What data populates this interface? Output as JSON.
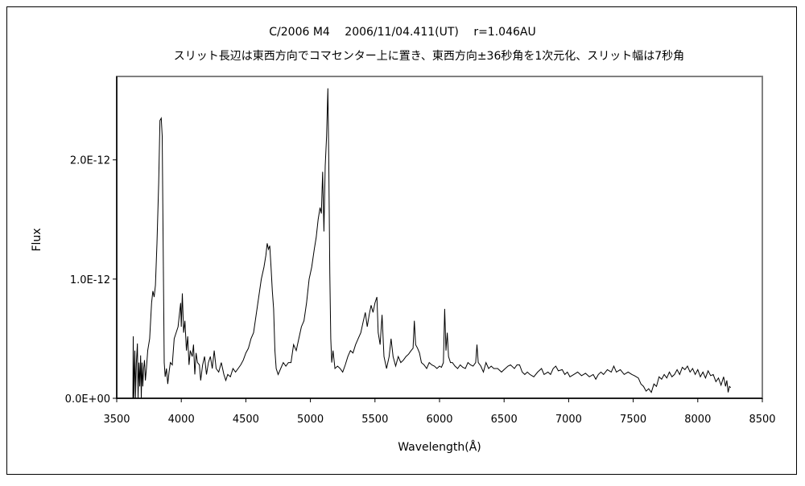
{
  "chart_data": {
    "type": "line",
    "title": "C/2006 M4　 2006/11/04.411(UT)　 r=1.046AU",
    "subtitle": "スリット長辺は東西方向でコマセンター上に置き、東西方向±36秒角を1次元化、スリット幅は7秒角",
    "xlabel": "Wavelength(Å)",
    "ylabel": "Flux",
    "xlim": [
      3500,
      8500
    ],
    "ylim": [
      0,
      2.7e-12
    ],
    "y_unit_scale": 1e-12,
    "grid": false,
    "legend": "none",
    "x_ticks": [
      "3500",
      "4000",
      "4500",
      "5000",
      "5500",
      "6000",
      "6500",
      "7000",
      "7500",
      "8000",
      "8500"
    ],
    "x_tick_values": [
      3500,
      4000,
      4500,
      5000,
      5500,
      6000,
      6500,
      7000,
      7500,
      8000,
      8500
    ],
    "y_ticks": [
      "0.0E+00",
      "1.0E-12",
      "2.0E-12"
    ],
    "y_tick_values": [
      0,
      1,
      2
    ],
    "line_color": "#000000",
    "series": [
      {
        "name": "Flux",
        "points": [
          [
            3625,
            0
          ],
          [
            3628,
            0.52
          ],
          [
            3632,
            0
          ],
          [
            3640,
            0.4
          ],
          [
            3645,
            0
          ],
          [
            3652,
            0.3
          ],
          [
            3660,
            0.46
          ],
          [
            3665,
            0
          ],
          [
            3672,
            0.3
          ],
          [
            3678,
            0.1
          ],
          [
            3685,
            0.36
          ],
          [
            3690,
            0
          ],
          [
            3696,
            0.3
          ],
          [
            3702,
            0.1
          ],
          [
            3708,
            0.25
          ],
          [
            3715,
            0.32
          ],
          [
            3722,
            0.15
          ],
          [
            3730,
            0.25
          ],
          [
            3740,
            0.4
          ],
          [
            3755,
            0.5
          ],
          [
            3770,
            0.8
          ],
          [
            3780,
            0.9
          ],
          [
            3790,
            0.85
          ],
          [
            3800,
            0.95
          ],
          [
            3812,
            1.3
          ],
          [
            3825,
            1.8
          ],
          [
            3835,
            2.33
          ],
          [
            3845,
            2.35
          ],
          [
            3852,
            2.2
          ],
          [
            3858,
            1.5
          ],
          [
            3863,
            0.9
          ],
          [
            3868,
            0.3
          ],
          [
            3875,
            0.18
          ],
          [
            3885,
            0.25
          ],
          [
            3895,
            0.12
          ],
          [
            3905,
            0.22
          ],
          [
            3915,
            0.3
          ],
          [
            3930,
            0.28
          ],
          [
            3945,
            0.5
          ],
          [
            3960,
            0.55
          ],
          [
            3975,
            0.6
          ],
          [
            3985,
            0.7
          ],
          [
            3995,
            0.8
          ],
          [
            4000,
            0.6
          ],
          [
            4008,
            0.88
          ],
          [
            4018,
            0.55
          ],
          [
            4028,
            0.65
          ],
          [
            4040,
            0.4
          ],
          [
            4050,
            0.52
          ],
          [
            4060,
            0.28
          ],
          [
            4070,
            0.4
          ],
          [
            4085,
            0.35
          ],
          [
            4095,
            0.45
          ],
          [
            4105,
            0.2
          ],
          [
            4115,
            0.38
          ],
          [
            4125,
            0.3
          ],
          [
            4140,
            0.28
          ],
          [
            4150,
            0.15
          ],
          [
            4165,
            0.28
          ],
          [
            4180,
            0.35
          ],
          [
            4195,
            0.2
          ],
          [
            4210,
            0.3
          ],
          [
            4225,
            0.35
          ],
          [
            4240,
            0.25
          ],
          [
            4255,
            0.4
          ],
          [
            4270,
            0.25
          ],
          [
            4290,
            0.22
          ],
          [
            4310,
            0.3
          ],
          [
            4330,
            0.2
          ],
          [
            4345,
            0.15
          ],
          [
            4360,
            0.2
          ],
          [
            4380,
            0.18
          ],
          [
            4400,
            0.25
          ],
          [
            4420,
            0.22
          ],
          [
            4440,
            0.25
          ],
          [
            4460,
            0.28
          ],
          [
            4480,
            0.32
          ],
          [
            4500,
            0.38
          ],
          [
            4520,
            0.42
          ],
          [
            4540,
            0.5
          ],
          [
            4560,
            0.55
          ],
          [
            4580,
            0.7
          ],
          [
            4600,
            0.85
          ],
          [
            4620,
            1.0
          ],
          [
            4640,
            1.1
          ],
          [
            4655,
            1.2
          ],
          [
            4665,
            1.3
          ],
          [
            4675,
            1.25
          ],
          [
            4685,
            1.28
          ],
          [
            4695,
            1.1
          ],
          [
            4705,
            0.9
          ],
          [
            4715,
            0.75
          ],
          [
            4725,
            0.4
          ],
          [
            4735,
            0.25
          ],
          [
            4750,
            0.2
          ],
          [
            4770,
            0.25
          ],
          [
            4790,
            0.3
          ],
          [
            4810,
            0.27
          ],
          [
            4830,
            0.3
          ],
          [
            4850,
            0.3
          ],
          [
            4870,
            0.45
          ],
          [
            4890,
            0.4
          ],
          [
            4910,
            0.5
          ],
          [
            4930,
            0.6
          ],
          [
            4950,
            0.65
          ],
          [
            4970,
            0.8
          ],
          [
            4990,
            1.0
          ],
          [
            5010,
            1.1
          ],
          [
            5030,
            1.25
          ],
          [
            5045,
            1.35
          ],
          [
            5060,
            1.5
          ],
          [
            5075,
            1.6
          ],
          [
            5085,
            1.55
          ],
          [
            5095,
            1.9
          ],
          [
            5105,
            1.4
          ],
          [
            5115,
            1.95
          ],
          [
            5125,
            2.2
          ],
          [
            5135,
            2.6
          ],
          [
            5142,
            2.0
          ],
          [
            5150,
            1.05
          ],
          [
            5158,
            0.5
          ],
          [
            5165,
            0.3
          ],
          [
            5175,
            0.4
          ],
          [
            5190,
            0.25
          ],
          [
            5210,
            0.27
          ],
          [
            5230,
            0.25
          ],
          [
            5250,
            0.22
          ],
          [
            5270,
            0.28
          ],
          [
            5290,
            0.35
          ],
          [
            5310,
            0.4
          ],
          [
            5330,
            0.38
          ],
          [
            5350,
            0.45
          ],
          [
            5370,
            0.5
          ],
          [
            5390,
            0.55
          ],
          [
            5410,
            0.65
          ],
          [
            5425,
            0.72
          ],
          [
            5440,
            0.6
          ],
          [
            5455,
            0.7
          ],
          [
            5470,
            0.78
          ],
          [
            5485,
            0.72
          ],
          [
            5500,
            0.8
          ],
          [
            5515,
            0.85
          ],
          [
            5525,
            0.55
          ],
          [
            5540,
            0.45
          ],
          [
            5555,
            0.7
          ],
          [
            5570,
            0.35
          ],
          [
            5590,
            0.25
          ],
          [
            5610,
            0.35
          ],
          [
            5625,
            0.5
          ],
          [
            5640,
            0.35
          ],
          [
            5660,
            0.27
          ],
          [
            5680,
            0.35
          ],
          [
            5700,
            0.3
          ],
          [
            5720,
            0.32
          ],
          [
            5740,
            0.35
          ],
          [
            5760,
            0.37
          ],
          [
            5780,
            0.4
          ],
          [
            5795,
            0.42
          ],
          [
            5805,
            0.65
          ],
          [
            5815,
            0.45
          ],
          [
            5830,
            0.42
          ],
          [
            5845,
            0.38
          ],
          [
            5860,
            0.3
          ],
          [
            5880,
            0.28
          ],
          [
            5900,
            0.25
          ],
          [
            5920,
            0.3
          ],
          [
            5940,
            0.28
          ],
          [
            5960,
            0.27
          ],
          [
            5980,
            0.25
          ],
          [
            6000,
            0.27
          ],
          [
            6015,
            0.26
          ],
          [
            6030,
            0.3
          ],
          [
            6040,
            0.75
          ],
          [
            6050,
            0.4
          ],
          [
            6060,
            0.55
          ],
          [
            6070,
            0.35
          ],
          [
            6085,
            0.3
          ],
          [
            6100,
            0.3
          ],
          [
            6120,
            0.27
          ],
          [
            6140,
            0.25
          ],
          [
            6160,
            0.28
          ],
          [
            6180,
            0.26
          ],
          [
            6200,
            0.25
          ],
          [
            6220,
            0.3
          ],
          [
            6240,
            0.28
          ],
          [
            6260,
            0.27
          ],
          [
            6280,
            0.3
          ],
          [
            6290,
            0.45
          ],
          [
            6300,
            0.3
          ],
          [
            6320,
            0.27
          ],
          [
            6340,
            0.22
          ],
          [
            6360,
            0.3
          ],
          [
            6380,
            0.25
          ],
          [
            6400,
            0.27
          ],
          [
            6420,
            0.25
          ],
          [
            6450,
            0.25
          ],
          [
            6480,
            0.22
          ],
          [
            6500,
            0.24
          ],
          [
            6530,
            0.27
          ],
          [
            6550,
            0.28
          ],
          [
            6580,
            0.25
          ],
          [
            6600,
            0.28
          ],
          [
            6620,
            0.28
          ],
          [
            6640,
            0.22
          ],
          [
            6660,
            0.2
          ],
          [
            6680,
            0.22
          ],
          [
            6700,
            0.2
          ],
          [
            6730,
            0.18
          ],
          [
            6760,
            0.22
          ],
          [
            6790,
            0.25
          ],
          [
            6810,
            0.2
          ],
          [
            6840,
            0.22
          ],
          [
            6860,
            0.2
          ],
          [
            6880,
            0.25
          ],
          [
            6900,
            0.27
          ],
          [
            6920,
            0.23
          ],
          [
            6950,
            0.24
          ],
          [
            6970,
            0.2
          ],
          [
            6990,
            0.22
          ],
          [
            7010,
            0.18
          ],
          [
            7040,
            0.2
          ],
          [
            7070,
            0.22
          ],
          [
            7100,
            0.19
          ],
          [
            7130,
            0.21
          ],
          [
            7160,
            0.18
          ],
          [
            7190,
            0.2
          ],
          [
            7210,
            0.16
          ],
          [
            7230,
            0.2
          ],
          [
            7250,
            0.22
          ],
          [
            7270,
            0.2
          ],
          [
            7300,
            0.24
          ],
          [
            7330,
            0.22
          ],
          [
            7350,
            0.27
          ],
          [
            7370,
            0.22
          ],
          [
            7400,
            0.24
          ],
          [
            7430,
            0.2
          ],
          [
            7460,
            0.22
          ],
          [
            7490,
            0.2
          ],
          [
            7510,
            0.19
          ],
          [
            7540,
            0.17
          ],
          [
            7560,
            0.12
          ],
          [
            7580,
            0.1
          ],
          [
            7600,
            0.06
          ],
          [
            7620,
            0.08
          ],
          [
            7640,
            0.05
          ],
          [
            7660,
            0.12
          ],
          [
            7680,
            0.1
          ],
          [
            7700,
            0.18
          ],
          [
            7720,
            0.16
          ],
          [
            7740,
            0.2
          ],
          [
            7760,
            0.17
          ],
          [
            7780,
            0.22
          ],
          [
            7800,
            0.18
          ],
          [
            7820,
            0.2
          ],
          [
            7840,
            0.24
          ],
          [
            7860,
            0.2
          ],
          [
            7880,
            0.26
          ],
          [
            7900,
            0.24
          ],
          [
            7920,
            0.27
          ],
          [
            7940,
            0.22
          ],
          [
            7960,
            0.25
          ],
          [
            7980,
            0.2
          ],
          [
            8000,
            0.24
          ],
          [
            8020,
            0.18
          ],
          [
            8040,
            0.22
          ],
          [
            8060,
            0.17
          ],
          [
            8080,
            0.23
          ],
          [
            8100,
            0.19
          ],
          [
            8120,
            0.2
          ],
          [
            8140,
            0.14
          ],
          [
            8160,
            0.17
          ],
          [
            8180,
            0.11
          ],
          [
            8200,
            0.18
          ],
          [
            8215,
            0.1
          ],
          [
            8225,
            0.15
          ],
          [
            8235,
            0.05
          ],
          [
            8245,
            0.1
          ],
          [
            8255,
            0.09
          ]
        ]
      }
    ]
  }
}
